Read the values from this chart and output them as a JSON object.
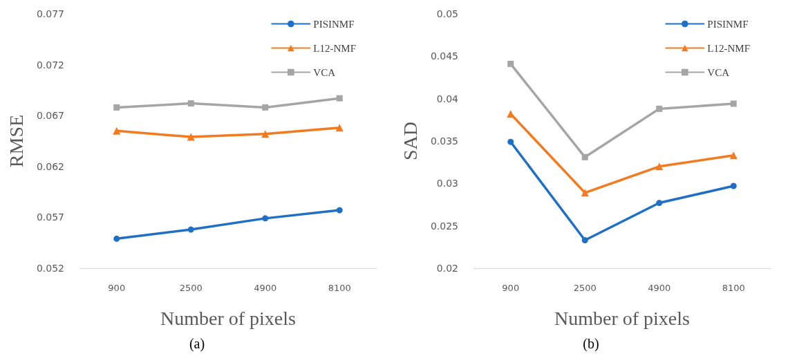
{
  "chart_data": [
    {
      "type": "line",
      "xlabel": "Number of pixels",
      "ylabel": "RMSE",
      "categories": [
        "900",
        "2500",
        "4900",
        "8100"
      ],
      "series": [
        {
          "name": "PISINMF",
          "color": "#1f6fc5",
          "marker": "circle",
          "values": [
            0.0549,
            0.0558,
            0.0569,
            0.0577
          ]
        },
        {
          "name": "L12-NMF",
          "color": "#f47a20",
          "marker": "triangle",
          "values": [
            0.0655,
            0.0649,
            0.0652,
            0.0658
          ]
        },
        {
          "name": "VCA",
          "color": "#a5a5a5",
          "marker": "square",
          "values": [
            0.0678,
            0.0682,
            0.0678,
            0.0687
          ]
        }
      ],
      "ylim": [
        0.052,
        0.077
      ],
      "yticks": [
        0.052,
        0.057,
        0.062,
        0.067,
        0.072,
        0.077
      ],
      "grid": false,
      "legend": "top right",
      "line_style": "solid",
      "annotations": [
        "(a)"
      ]
    },
    {
      "type": "line",
      "xlabel": "Number of pixels",
      "ylabel": "SAD",
      "categories": [
        "900",
        "2500",
        "4900",
        "8100"
      ],
      "series": [
        {
          "name": "PISINMF",
          "color": "#1f6fc5",
          "marker": "circle",
          "values": [
            0.0349,
            0.0233,
            0.0277,
            0.0297
          ]
        },
        {
          "name": "L12-NMF",
          "color": "#f47a20",
          "marker": "triangle",
          "values": [
            0.0382,
            0.0289,
            0.032,
            0.0333
          ]
        },
        {
          "name": "VCA",
          "color": "#a5a5a5",
          "marker": "square",
          "values": [
            0.0441,
            0.0331,
            0.0388,
            0.0394
          ]
        }
      ],
      "ylim": [
        0.02,
        0.05
      ],
      "yticks": [
        0.02,
        0.025,
        0.03,
        0.035,
        0.04,
        0.045,
        0.05
      ],
      "grid": false,
      "legend": "top right",
      "line_style": "solid",
      "annotations": [
        "(b)"
      ]
    }
  ]
}
